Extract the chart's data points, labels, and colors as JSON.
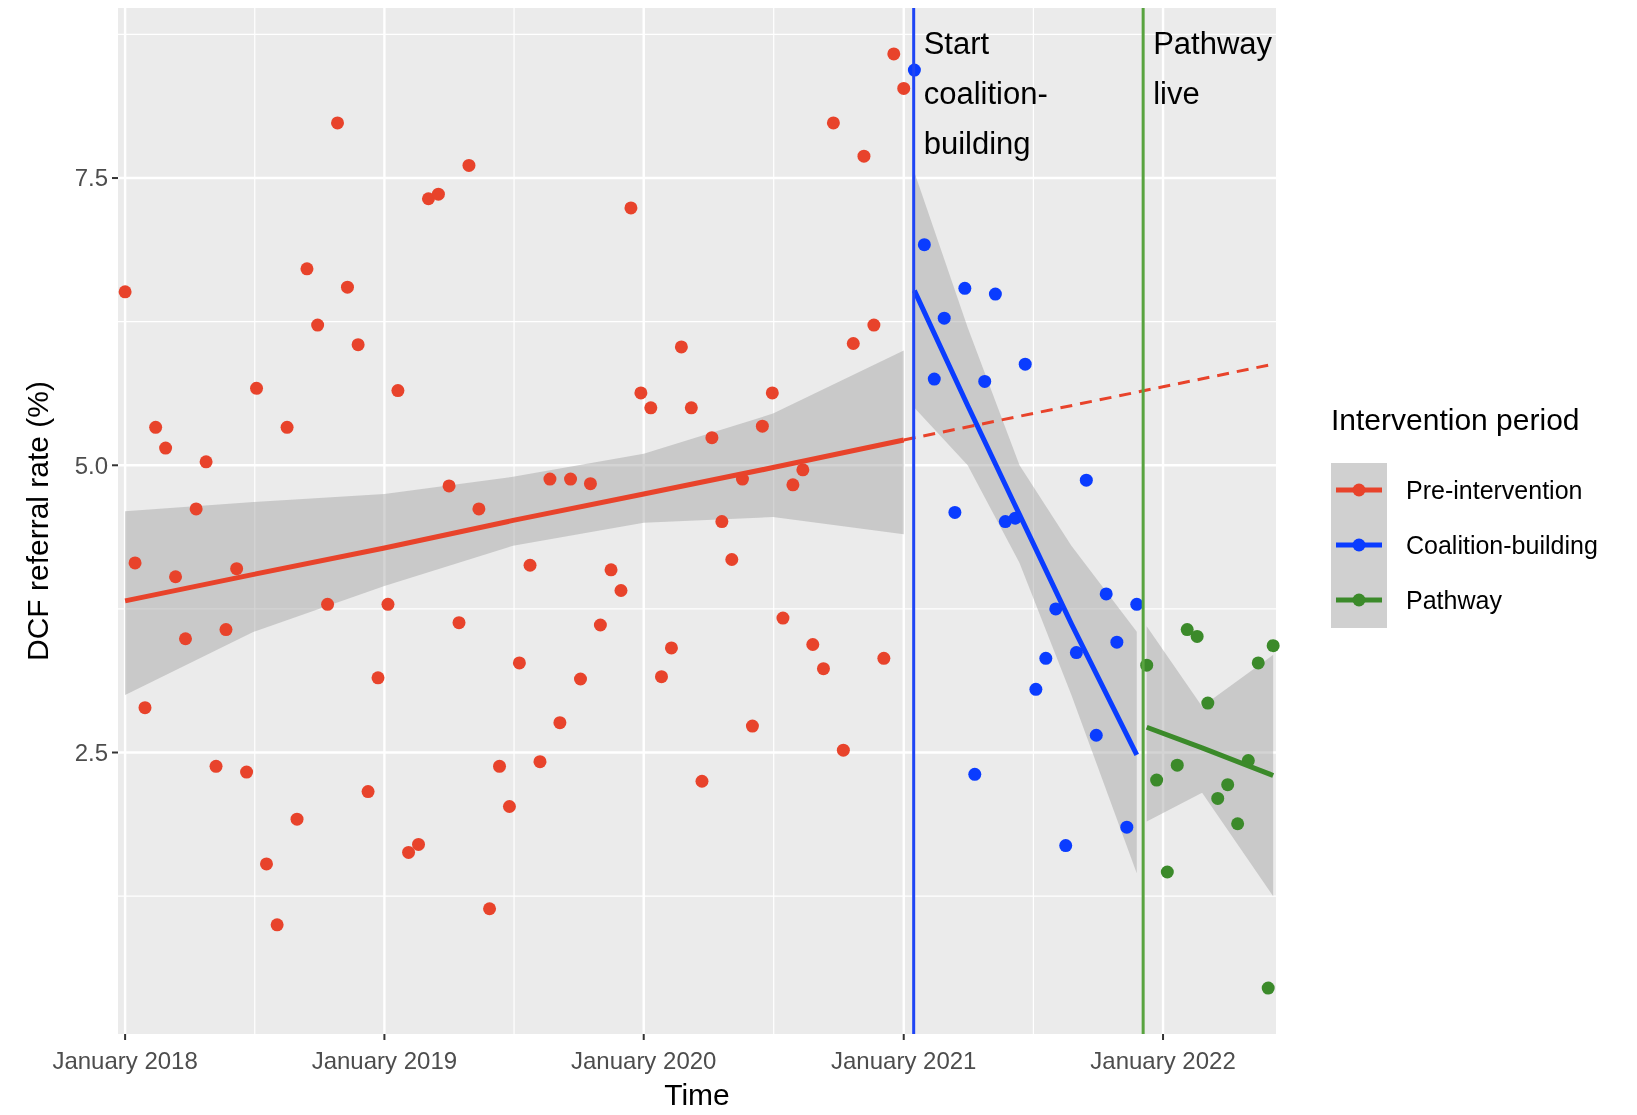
{
  "chart_data": {
    "type": "scatter",
    "xlabel": "Time",
    "ylabel": "DCF referral rate (%)",
    "legend_title": "Intervention period",
    "legend": "right",
    "grid": true,
    "marker": "circle",
    "xlim": [
      "2017-12-22",
      "2022-06-09"
    ],
    "ylim": [
      0.05,
      8.98
    ],
    "xticks": [
      {
        "value": "2018-01",
        "label": "January 2018"
      },
      {
        "value": "2019-01",
        "label": "January 2019"
      },
      {
        "value": "2020-01",
        "label": "January 2020"
      },
      {
        "value": "2021-01",
        "label": "January 2021"
      },
      {
        "value": "2022-01",
        "label": "January 2022"
      }
    ],
    "yticks": [
      2.5,
      {
        "value": 5,
        "label": "5.0"
      },
      7.5
    ],
    "ref_lines": [
      {
        "axis": "x",
        "value": "2021-01-15",
        "label": "Start coalition-building",
        "color": "#1f45f5"
      },
      {
        "axis": "x",
        "value": "2021-12-04",
        "label": "Pathway live",
        "color": "#58a33f"
      }
    ],
    "series": [
      {
        "name": "Pre-intervention",
        "color": "#e8432b",
        "x": [
          "2018-01-01",
          "2018-01-15",
          "2018-01-29",
          "2018-02-13",
          "2018-02-27",
          "2018-03-13",
          "2018-03-27",
          "2018-04-11",
          "2018-04-25",
          "2018-05-09",
          "2018-05-23",
          "2018-06-07",
          "2018-06-21",
          "2018-07-05",
          "2018-07-19",
          "2018-08-03",
          "2018-08-17",
          "2018-08-31",
          "2018-09-14",
          "2018-09-29",
          "2018-10-13",
          "2018-10-27",
          "2018-11-10",
          "2018-11-25",
          "2018-12-09",
          "2018-12-23",
          "2019-01-06",
          "2019-01-20",
          "2019-02-04",
          "2019-02-18",
          "2019-03-04",
          "2019-03-18",
          "2019-04-02",
          "2019-04-16",
          "2019-04-30",
          "2019-05-14",
          "2019-05-29",
          "2019-06-12",
          "2019-06-26",
          "2019-07-10",
          "2019-07-25",
          "2019-08-08",
          "2019-08-22",
          "2019-09-05",
          "2019-09-20",
          "2019-10-04",
          "2019-10-18",
          "2019-11-01",
          "2019-11-16",
          "2019-11-30",
          "2019-12-14",
          "2019-12-28",
          "2020-01-11",
          "2020-01-26",
          "2020-02-09",
          "2020-02-23",
          "2020-03-08",
          "2020-03-23",
          "2020-04-06",
          "2020-04-20",
          "2020-05-04",
          "2020-05-19",
          "2020-06-02",
          "2020-06-16",
          "2020-06-30",
          "2020-07-15",
          "2020-07-29",
          "2020-08-12",
          "2020-08-26",
          "2020-09-10",
          "2020-09-24",
          "2020-10-08",
          "2020-10-22",
          "2020-11-06",
          "2020-11-20",
          "2020-12-04",
          "2020-12-18",
          "2021-01-01"
        ],
        "values": [
          6.51,
          4.15,
          2.89,
          5.33,
          5.15,
          4.03,
          3.49,
          4.62,
          5.03,
          2.38,
          3.57,
          4.1,
          2.33,
          5.67,
          1.53,
          1.0,
          5.33,
          1.92,
          6.71,
          6.22,
          3.79,
          7.98,
          6.55,
          6.05,
          2.16,
          3.15,
          3.79,
          5.65,
          1.63,
          1.7,
          7.32,
          7.36,
          4.82,
          3.63,
          7.61,
          4.62,
          1.14,
          2.38,
          2.03,
          3.28,
          4.13,
          2.42,
          4.88,
          2.76,
          4.88,
          3.14,
          4.84,
          3.61,
          4.09,
          3.91,
          7.24,
          5.63,
          5.5,
          3.16,
          3.41,
          6.03,
          5.5,
          2.25,
          5.24,
          4.51,
          4.18,
          4.88,
          2.73,
          5.34,
          5.63,
          3.67,
          4.83,
          4.96,
          3.44,
          3.23,
          7.98,
          2.52,
          6.06,
          7.69,
          6.22,
          3.32,
          8.58,
          8.28
        ]
      },
      {
        "name": "Coalition-building",
        "color": "#0a3cff",
        "x": [
          "2021-01-16",
          "2021-01-30",
          "2021-02-13",
          "2021-02-27",
          "2021-03-14",
          "2021-03-28",
          "2021-04-11",
          "2021-04-25",
          "2021-05-10",
          "2021-05-24",
          "2021-06-07",
          "2021-06-21",
          "2021-07-06",
          "2021-07-20",
          "2021-08-03",
          "2021-08-17",
          "2021-09-01",
          "2021-09-15",
          "2021-09-29",
          "2021-10-13",
          "2021-10-28",
          "2021-11-11",
          "2021-11-25"
        ],
        "values": [
          8.44,
          6.92,
          5.75,
          6.28,
          4.59,
          6.54,
          2.31,
          5.73,
          6.49,
          4.51,
          4.54,
          5.88,
          3.05,
          3.32,
          3.75,
          1.69,
          3.37,
          4.87,
          2.65,
          3.88,
          3.46,
          1.85,
          3.79
        ]
      },
      {
        "name": "Pathway",
        "color": "#3b8a2a",
        "x": [
          "2021-12-09",
          "2021-12-23",
          "2022-01-07",
          "2022-01-21",
          "2022-02-04",
          "2022-02-18",
          "2022-03-05",
          "2022-03-19",
          "2022-04-02",
          "2022-04-16",
          "2022-05-01",
          "2022-05-15",
          "2022-05-29",
          "2022-06-05"
        ],
        "values": [
          3.26,
          2.26,
          1.46,
          2.39,
          3.57,
          3.51,
          2.93,
          2.1,
          2.22,
          1.88,
          2.43,
          3.28,
          0.45,
          3.43
        ]
      },
      {
        "type": "line",
        "marker": "none",
        "color": "#e8432b",
        "x": [
          "2018-01-01",
          "2018-07-01",
          "2019-01-01",
          "2019-07-01",
          "2020-01-01",
          "2020-07-01",
          "2021-01-01"
        ],
        "values": [
          3.82,
          4.05,
          4.28,
          4.52,
          4.75,
          4.98,
          5.22
        ],
        "lower": [
          3.0,
          3.55,
          3.95,
          4.3,
          4.5,
          4.55,
          4.4
        ],
        "upper": [
          4.6,
          4.68,
          4.75,
          4.9,
          5.1,
          5.45,
          6.0
        ]
      },
      {
        "type": "line",
        "marker": "none",
        "color": "#e8432b",
        "line_style": "dashed",
        "x": [
          "2021-01-01",
          "2022-06-05"
        ],
        "values": [
          5.22,
          5.88
        ]
      },
      {
        "type": "line",
        "marker": "none",
        "color": "#0a3cff",
        "x": [
          "2021-01-16",
          "2021-04-01",
          "2021-06-13",
          "2021-08-25",
          "2021-11-25"
        ],
        "values": [
          6.52,
          5.52,
          4.57,
          3.62,
          2.48
        ],
        "lower": [
          5.5,
          5.0,
          4.15,
          3.0,
          1.45
        ],
        "upper": [
          7.55,
          6.2,
          5.0,
          4.3,
          3.55
        ]
      },
      {
        "type": "line",
        "marker": "none",
        "color": "#3b8a2a",
        "x": [
          "2021-12-09",
          "2022-02-25",
          "2022-06-05"
        ],
        "values": [
          2.72,
          2.54,
          2.3
        ],
        "lower": [
          1.9,
          2.15,
          1.25
        ],
        "upper": [
          3.6,
          2.9,
          3.35
        ]
      }
    ]
  }
}
